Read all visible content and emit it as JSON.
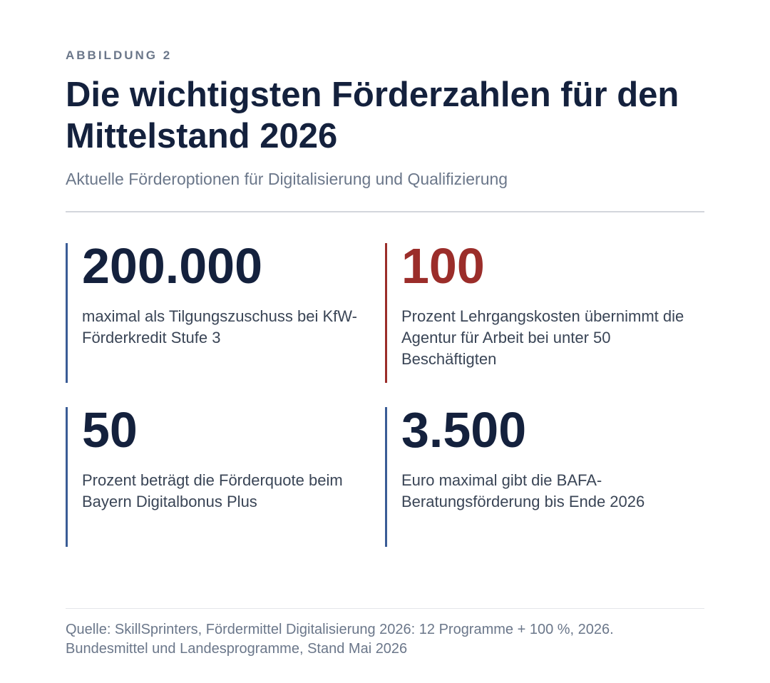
{
  "figure": {
    "eyebrow": "ABBILDUNG 2",
    "title": "Die wichtigsten Förderzahlen für den Mittelstand 2026",
    "subtitle": "Aktuelle Förderoptionen für Digitalisierung und Qualifizierung"
  },
  "stats": [
    {
      "value": "200.000",
      "description": "maximal als Tilgungszuschuss bei KfW-Förderkredit Stufe 3",
      "accent_color": "#3a5c96"
    },
    {
      "value": "100",
      "description": "Prozent Lehrgangskosten übernimmt die Agentur für Arbeit bei unter 50 Beschäftigten",
      "accent_color": "#9b2d2a"
    },
    {
      "value": "50",
      "description": "Prozent beträgt die Förderquote beim Bayern Digitalbonus Plus",
      "accent_color": "#3a5c96"
    },
    {
      "value": "3.500",
      "description": "Euro maximal gibt die BAFA-Beratungsförderung bis Ende 2026",
      "accent_color": "#3a5c96"
    }
  ],
  "source": {
    "line1": "Quelle: SkillSprinters, Fördermittel Digitalisierung 2026: 12 Programme + 100 %, 2026.",
    "line2": "Bundesmittel und Landesprogramme, Stand Mai 2026"
  },
  "colors": {
    "primary_text": "#14213d",
    "muted_text": "#6b778a",
    "highlight": "#9b2d2a",
    "border_blue": "#3a5c96"
  }
}
